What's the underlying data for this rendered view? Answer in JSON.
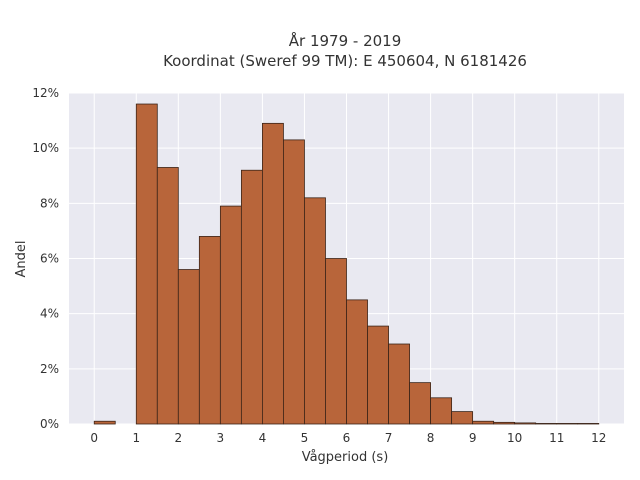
{
  "chart_data": {
    "type": "bar",
    "title_line1": "År 1979 - 2019",
    "title_line2": "Koordinat (Sweref 99 TM): E 450604, N 6181426",
    "xlabel": "Vågperiod (s)",
    "ylabel": "Andel",
    "xlim": [
      -0.6,
      12.6
    ],
    "ylim": [
      0,
      12
    ],
    "x_ticks": [
      0,
      1,
      2,
      3,
      4,
      5,
      6,
      7,
      8,
      9,
      10,
      11,
      12
    ],
    "y_ticks": [
      0,
      2,
      4,
      6,
      8,
      10,
      12
    ],
    "y_tick_labels": [
      "0%",
      "2%",
      "4%",
      "6%",
      "8%",
      "10%",
      "12%"
    ],
    "bin_width": 0.5,
    "bins": [
      {
        "x0": 0.0,
        "value": 0.1
      },
      {
        "x0": 1.0,
        "value": 11.6
      },
      {
        "x0": 1.5,
        "value": 9.3
      },
      {
        "x0": 2.0,
        "value": 5.6
      },
      {
        "x0": 2.5,
        "value": 6.8
      },
      {
        "x0": 3.0,
        "value": 7.9
      },
      {
        "x0": 3.5,
        "value": 9.2
      },
      {
        "x0": 4.0,
        "value": 10.9
      },
      {
        "x0": 4.5,
        "value": 10.3
      },
      {
        "x0": 5.0,
        "value": 8.2
      },
      {
        "x0": 5.5,
        "value": 6.0
      },
      {
        "x0": 6.0,
        "value": 4.5
      },
      {
        "x0": 6.5,
        "value": 3.55
      },
      {
        "x0": 7.0,
        "value": 2.9
      },
      {
        "x0": 7.5,
        "value": 1.5
      },
      {
        "x0": 8.0,
        "value": 0.95
      },
      {
        "x0": 8.5,
        "value": 0.45
      },
      {
        "x0": 9.0,
        "value": 0.1
      },
      {
        "x0": 9.5,
        "value": 0.06
      },
      {
        "x0": 10.0,
        "value": 0.04
      },
      {
        "x0": 10.5,
        "value": 0.02
      },
      {
        "x0": 11.0,
        "value": 0.02
      },
      {
        "x0": 11.5,
        "value": 0.02
      }
    ],
    "grid": true,
    "colors": {
      "bar_fill": "#b8653a",
      "bar_stroke": "#3b2418",
      "plot_background": "#e9e9f1",
      "grid": "#ffffff"
    }
  }
}
